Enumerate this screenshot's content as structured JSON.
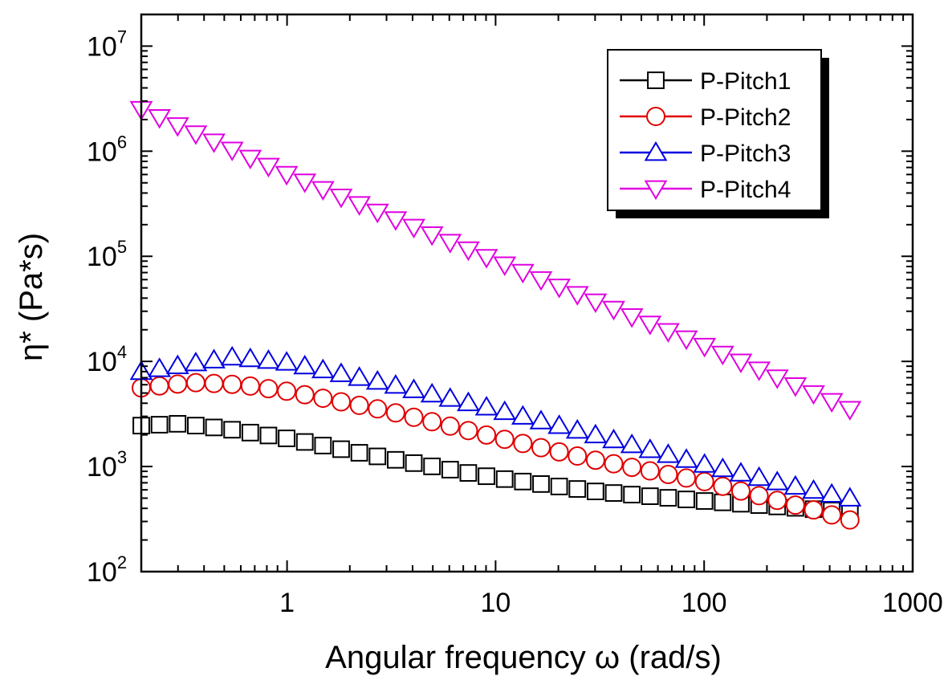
{
  "chart_data": {
    "type": "scatter",
    "title": "",
    "xlabel": "Angular frequency ω (rad/s)",
    "ylabel": "η* (Pa*s)",
    "xscale": "log",
    "yscale": "log",
    "xlim": [
      0.2,
      1000
    ],
    "ylim": [
      100,
      20000000
    ],
    "x_ticks": [
      {
        "value": 1,
        "label": "1"
      },
      {
        "value": 10,
        "label": "10"
      },
      {
        "value": 100,
        "label": "100"
      },
      {
        "value": 1000,
        "label": "1000"
      }
    ],
    "y_ticks": [
      {
        "value": 100,
        "mantissa": "10",
        "exp": "2"
      },
      {
        "value": 1000,
        "mantissa": "10",
        "exp": "3"
      },
      {
        "value": 10000,
        "mantissa": "10",
        "exp": "4"
      },
      {
        "value": 100000,
        "mantissa": "10",
        "exp": "5"
      },
      {
        "value": 1000000,
        "mantissa": "10",
        "exp": "6"
      },
      {
        "value": 10000000,
        "mantissa": "10",
        "exp": "7"
      }
    ],
    "legend_position": "top-right",
    "grid": false,
    "x_range": [
      0.2,
      500
    ],
    "points_per_series": 40,
    "series": [
      {
        "name": "P-Pitch1",
        "color": "#000000",
        "marker": "square",
        "anchors": [
          [
            0.2,
            2450
          ],
          [
            0.3,
            2550
          ],
          [
            0.5,
            2300
          ],
          [
            1,
            1850
          ],
          [
            3,
            1200
          ],
          [
            10,
            780
          ],
          [
            30,
            580
          ],
          [
            100,
            470
          ],
          [
            500,
            370
          ]
        ]
      },
      {
        "name": "P-Pitch2",
        "color": "#e00000",
        "marker": "circle",
        "anchors": [
          [
            0.2,
            5600
          ],
          [
            0.35,
            6300
          ],
          [
            0.6,
            6000
          ],
          [
            1,
            5200
          ],
          [
            3,
            3400
          ],
          [
            10,
            1900
          ],
          [
            30,
            1150
          ],
          [
            100,
            720
          ],
          [
            300,
            410
          ],
          [
            500,
            310
          ]
        ]
      },
      {
        "name": "P-Pitch3",
        "color": "#0000e0",
        "marker": "triangle-up",
        "anchors": [
          [
            0.2,
            8000
          ],
          [
            0.55,
            11000
          ],
          [
            1,
            9800
          ],
          [
            3,
            6200
          ],
          [
            10,
            3500
          ],
          [
            30,
            2000
          ],
          [
            100,
            1050
          ],
          [
            300,
            620
          ],
          [
            500,
            500
          ]
        ]
      },
      {
        "name": "P-Pitch4",
        "color": "#e000e0",
        "marker": "triangle-down",
        "anchors": [
          [
            0.2,
            2500000
          ],
          [
            1,
            600000
          ],
          [
            10,
            90000
          ],
          [
            100,
            14000
          ],
          [
            500,
            3500
          ]
        ]
      }
    ]
  }
}
